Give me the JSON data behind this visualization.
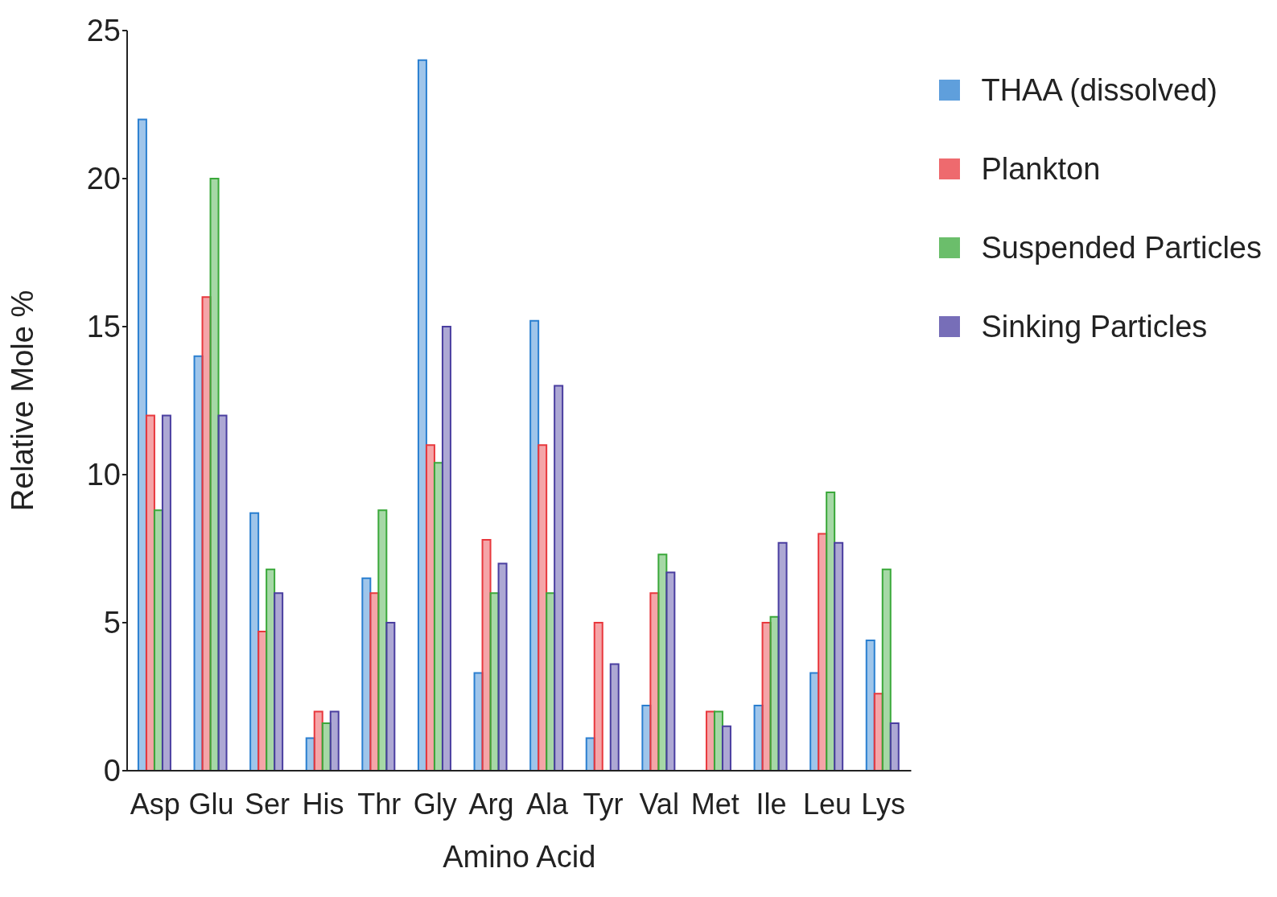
{
  "chart_data": {
    "type": "bar",
    "xlabel": "Amino Acid",
    "ylabel": "Relative Mole %",
    "categories": [
      "Asp",
      "Glu",
      "Ser",
      "His",
      "Thr",
      "Gly",
      "Arg",
      "Ala",
      "Tyr",
      "Val",
      "Met",
      "Ile",
      "Leu",
      "Lys"
    ],
    "series": [
      {
        "name": "THAA (dissolved)",
        "color": "#2a7fd0",
        "values": [
          22,
          14,
          8.7,
          1.1,
          6.5,
          24,
          3.3,
          15.2,
          1.1,
          2.2,
          null,
          2.2,
          3.3,
          4.4
        ]
      },
      {
        "name": "Plankton",
        "color": "#e8383d",
        "values": [
          12,
          16,
          4.7,
          2,
          6,
          11,
          7.8,
          11,
          5,
          6,
          2,
          5,
          8,
          2.6
        ]
      },
      {
        "name": "Suspended Particles",
        "color": "#3aa83a",
        "values": [
          8.8,
          20,
          6.8,
          1.6,
          8.8,
          10.4,
          6,
          6,
          null,
          7.3,
          2,
          5.2,
          9.4,
          6.8
        ]
      },
      {
        "name": "Sinking Particles",
        "color": "#4a3ea0",
        "values": [
          12,
          12,
          6,
          2,
          5,
          15,
          7,
          13,
          3.6,
          6.7,
          1.5,
          7.7,
          7.7,
          1.6
        ]
      }
    ],
    "ylim": [
      0,
      25
    ],
    "yticks": [
      0,
      5,
      10,
      15,
      20,
      25
    ],
    "grid": false,
    "legend": "top right"
  }
}
